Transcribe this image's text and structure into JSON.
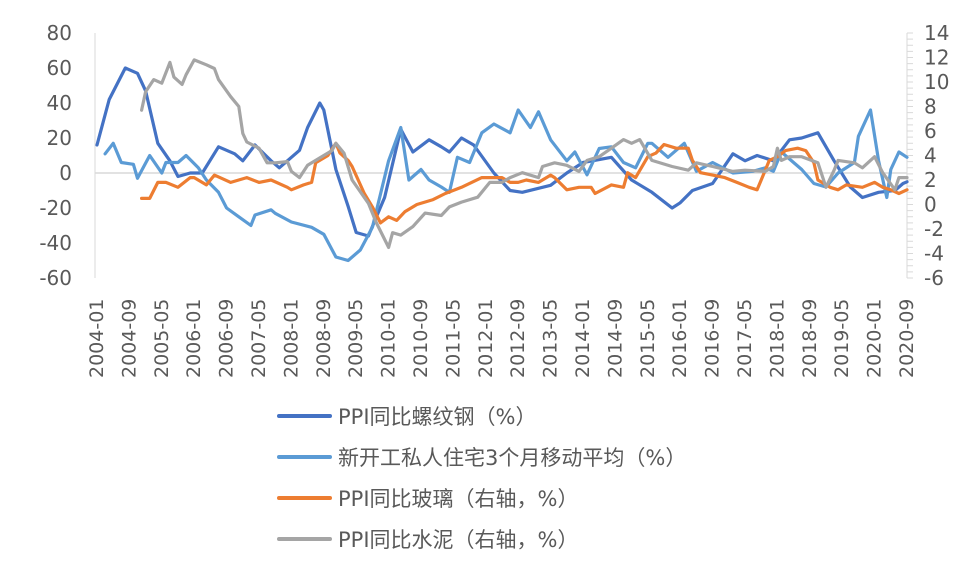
{
  "chart_data": {
    "type": "line",
    "title": "",
    "x_tick_labels": [
      "2004-01",
      "2004-09",
      "2005-05",
      "2006-01",
      "2006-09",
      "2007-05",
      "2008-01",
      "2008-09",
      "2009-05",
      "2010-01",
      "2010-09",
      "2011-05",
      "2012-01",
      "2012-09",
      "2013-05",
      "2014-01",
      "2014-09",
      "2015-05",
      "2016-01",
      "2016-09",
      "2017-05",
      "2018-01",
      "2018-09",
      "2019-05",
      "2020-01",
      "2020-09"
    ],
    "x_range": [
      "2004-01",
      "2020-09"
    ],
    "y_left": {
      "range": [
        -60,
        80
      ],
      "ticks": [
        "80",
        "60",
        "40",
        "20",
        "0",
        "-20",
        "-40",
        "-60"
      ]
    },
    "y_right": {
      "range": [
        -6,
        14
      ],
      "ticks": [
        "14",
        "12",
        "10",
        "8",
        "6",
        "4",
        "2",
        "0",
        "-2",
        "-4",
        "-6"
      ]
    },
    "legend_position": "bottom",
    "series": [
      {
        "name": "PPI同比螺纹钢（%）",
        "axis": "left",
        "color": "#4472C4",
        "points": [
          [
            "2004-01",
            16
          ],
          [
            "2004-04",
            42
          ],
          [
            "2004-08",
            60
          ],
          [
            "2004-11",
            57
          ],
          [
            "2005-01",
            47
          ],
          [
            "2005-04",
            17
          ],
          [
            "2005-07",
            7
          ],
          [
            "2005-09",
            -2
          ],
          [
            "2005-12",
            0
          ],
          [
            "2006-03",
            0
          ],
          [
            "2006-07",
            15
          ],
          [
            "2006-11",
            11
          ],
          [
            "2007-01",
            7
          ],
          [
            "2007-04",
            16
          ],
          [
            "2007-08",
            7
          ],
          [
            "2007-10",
            3
          ],
          [
            "2008-03",
            13
          ],
          [
            "2008-05",
            26
          ],
          [
            "2008-08",
            40
          ],
          [
            "2008-09",
            36
          ],
          [
            "2008-12",
            2
          ],
          [
            "2009-03",
            -19
          ],
          [
            "2009-05",
            -34
          ],
          [
            "2009-08",
            -36
          ],
          [
            "2009-12",
            -14
          ],
          [
            "2010-04",
            25
          ],
          [
            "2010-07",
            12
          ],
          [
            "2010-11",
            19
          ],
          [
            "2011-02",
            15
          ],
          [
            "2011-04",
            12
          ],
          [
            "2011-07",
            20
          ],
          [
            "2011-10",
            16
          ],
          [
            "2012-03",
            0
          ],
          [
            "2012-07",
            -10
          ],
          [
            "2012-10",
            -11
          ],
          [
            "2013-05",
            -7
          ],
          [
            "2013-09",
            0
          ],
          [
            "2014-01",
            6
          ],
          [
            "2014-08",
            9
          ],
          [
            "2015-01",
            -4
          ],
          [
            "2015-06",
            -11
          ],
          [
            "2015-11",
            -20
          ],
          [
            "2016-01",
            -17
          ],
          [
            "2016-04",
            -10
          ],
          [
            "2016-09",
            -6
          ],
          [
            "2017-02",
            11
          ],
          [
            "2017-05",
            7
          ],
          [
            "2017-08",
            10
          ],
          [
            "2017-12",
            7
          ],
          [
            "2018-04",
            19
          ],
          [
            "2018-07",
            20
          ],
          [
            "2018-11",
            23
          ],
          [
            "2019-03",
            7
          ],
          [
            "2019-07",
            -8
          ],
          [
            "2019-10",
            -14
          ],
          [
            "2020-02",
            -11
          ],
          [
            "2020-06",
            -10
          ],
          [
            "2020-08",
            -6
          ],
          [
            "2020-09",
            -5
          ]
        ]
      },
      {
        "name": "新开工私人住宅3个月移动平均（%）",
        "axis": "left",
        "color": "#5B9BD5",
        "points": [
          [
            "2004-03",
            11
          ],
          [
            "2004-05",
            17
          ],
          [
            "2004-07",
            6
          ],
          [
            "2004-10",
            5
          ],
          [
            "2004-11",
            -3
          ],
          [
            "2005-02",
            10
          ],
          [
            "2005-05",
            0
          ],
          [
            "2005-06",
            6
          ],
          [
            "2005-09",
            6
          ],
          [
            "2005-11",
            10
          ],
          [
            "2006-02",
            3
          ],
          [
            "2006-04",
            -4
          ],
          [
            "2006-07",
            -11
          ],
          [
            "2006-09",
            -20
          ],
          [
            "2006-12",
            -25
          ],
          [
            "2007-03",
            -30
          ],
          [
            "2007-04",
            -24
          ],
          [
            "2007-08",
            -21
          ],
          [
            "2007-09",
            -23
          ],
          [
            "2008-01",
            -28
          ],
          [
            "2008-06",
            -31
          ],
          [
            "2008-09",
            -35
          ],
          [
            "2008-12",
            -48
          ],
          [
            "2009-03",
            -50
          ],
          [
            "2009-06",
            -44
          ],
          [
            "2009-09",
            -31
          ],
          [
            "2010-01",
            7
          ],
          [
            "2010-04",
            26
          ],
          [
            "2010-06",
            -4
          ],
          [
            "2010-09",
            2
          ],
          [
            "2010-11",
            -4
          ],
          [
            "2011-02",
            -8
          ],
          [
            "2011-04",
            -11
          ],
          [
            "2011-06",
            9
          ],
          [
            "2011-09",
            6
          ],
          [
            "2011-12",
            23
          ],
          [
            "2012-03",
            28
          ],
          [
            "2012-07",
            23
          ],
          [
            "2012-09",
            36
          ],
          [
            "2012-12",
            26
          ],
          [
            "2013-02",
            35
          ],
          [
            "2013-05",
            19
          ],
          [
            "2013-09",
            7
          ],
          [
            "2013-11",
            12
          ],
          [
            "2014-02",
            -1
          ],
          [
            "2014-05",
            14
          ],
          [
            "2014-08",
            15
          ],
          [
            "2014-11",
            6
          ],
          [
            "2015-02",
            3
          ],
          [
            "2015-05",
            17
          ],
          [
            "2015-06",
            17
          ],
          [
            "2015-10",
            9
          ],
          [
            "2016-02",
            17
          ],
          [
            "2016-05",
            1
          ],
          [
            "2016-09",
            6
          ],
          [
            "2017-02",
            0
          ],
          [
            "2017-07",
            1
          ],
          [
            "2017-10",
            3
          ],
          [
            "2017-12",
            1
          ],
          [
            "2018-02",
            12
          ],
          [
            "2018-07",
            2
          ],
          [
            "2018-10",
            -6
          ],
          [
            "2019-01",
            -8
          ],
          [
            "2019-04",
            0
          ],
          [
            "2019-08",
            6
          ],
          [
            "2019-09",
            21
          ],
          [
            "2019-12",
            36
          ],
          [
            "2020-02",
            7
          ],
          [
            "2020-04",
            -14
          ],
          [
            "2020-05",
            2
          ],
          [
            "2020-07",
            12
          ],
          [
            "2020-09",
            9
          ]
        ]
      },
      {
        "name": "PPI同比玻璃（右轴，%）",
        "axis": "right",
        "color": "#ED7D31",
        "points": [
          [
            "2004-12",
            0.5
          ],
          [
            "2005-02",
            0.5
          ],
          [
            "2005-04",
            1.8
          ],
          [
            "2005-06",
            1.8
          ],
          [
            "2005-09",
            1.4
          ],
          [
            "2005-12",
            2.2
          ],
          [
            "2006-01",
            2.2
          ],
          [
            "2006-04",
            1.6
          ],
          [
            "2006-06",
            2.4
          ],
          [
            "2006-10",
            1.8
          ],
          [
            "2007-02",
            2.2
          ],
          [
            "2007-05",
            1.8
          ],
          [
            "2007-08",
            2.0
          ],
          [
            "2007-12",
            1.4
          ],
          [
            "2008-01",
            1.2
          ],
          [
            "2008-04",
            1.6
          ],
          [
            "2008-06",
            1.8
          ],
          [
            "2008-07",
            3.4
          ],
          [
            "2008-10",
            4.0
          ],
          [
            "2008-12",
            5.0
          ],
          [
            "2009-01",
            4.2
          ],
          [
            "2009-03",
            3.6
          ],
          [
            "2009-04",
            3.1
          ],
          [
            "2009-07",
            0.9
          ],
          [
            "2009-09",
            -0.2
          ],
          [
            "2009-11",
            -1.5
          ],
          [
            "2010-01",
            -1.0
          ],
          [
            "2010-03",
            -1.3
          ],
          [
            "2010-05",
            -0.6
          ],
          [
            "2010-08",
            0
          ],
          [
            "2010-12",
            0.4
          ],
          [
            "2011-03",
            0.9
          ],
          [
            "2011-07",
            1.4
          ],
          [
            "2011-12",
            2.2
          ],
          [
            "2012-05",
            2.2
          ],
          [
            "2012-07",
            1.8
          ],
          [
            "2012-09",
            1.8
          ],
          [
            "2012-11",
            2.0
          ],
          [
            "2013-02",
            1.8
          ],
          [
            "2013-05",
            2.4
          ],
          [
            "2013-06",
            2.2
          ],
          [
            "2013-09",
            1.2
          ],
          [
            "2013-12",
            1.4
          ],
          [
            "2014-03",
            1.4
          ],
          [
            "2014-04",
            0.9
          ],
          [
            "2014-08",
            1.6
          ],
          [
            "2014-11",
            1.4
          ],
          [
            "2014-12",
            2.6
          ],
          [
            "2015-02",
            2.2
          ],
          [
            "2015-05",
            3.9
          ],
          [
            "2015-07",
            4.2
          ],
          [
            "2015-09",
            4.9
          ],
          [
            "2015-12",
            4.6
          ],
          [
            "2016-03",
            4.6
          ],
          [
            "2016-04",
            3.6
          ],
          [
            "2016-06",
            2.6
          ],
          [
            "2016-09",
            2.4
          ],
          [
            "2016-12",
            2.2
          ],
          [
            "2017-03",
            1.8
          ],
          [
            "2017-06",
            1.4
          ],
          [
            "2017-08",
            1.2
          ],
          [
            "2017-09",
            2.0
          ],
          [
            "2017-11",
            3.6
          ],
          [
            "2018-01",
            3.9
          ],
          [
            "2018-03",
            4.4
          ],
          [
            "2018-06",
            4.6
          ],
          [
            "2018-08",
            4.4
          ],
          [
            "2018-10",
            3.4
          ],
          [
            "2018-11",
            2.0
          ],
          [
            "2019-02",
            1.4
          ],
          [
            "2019-04",
            1.2
          ],
          [
            "2019-06",
            1.6
          ],
          [
            "2019-10",
            1.4
          ],
          [
            "2020-01",
            1.8
          ],
          [
            "2020-03",
            1.4
          ],
          [
            "2020-05",
            1.2
          ],
          [
            "2020-07",
            0.9
          ],
          [
            "2020-09",
            1.2
          ]
        ]
      },
      {
        "name": "PPI同比水泥（右轴，%）",
        "axis": "right",
        "color": "#A5A5A5",
        "points": [
          [
            "2004-12",
            7.7
          ],
          [
            "2005-01",
            9.2
          ],
          [
            "2005-03",
            10.2
          ],
          [
            "2005-05",
            9.9
          ],
          [
            "2005-07",
            11.6
          ],
          [
            "2005-08",
            10.4
          ],
          [
            "2005-10",
            9.8
          ],
          [
            "2005-11",
            10.6
          ],
          [
            "2006-01",
            11.8
          ],
          [
            "2006-04",
            11.4
          ],
          [
            "2006-06",
            11.1
          ],
          [
            "2006-07",
            10.2
          ],
          [
            "2006-10",
            8.8
          ],
          [
            "2006-12",
            8.0
          ],
          [
            "2007-01",
            5.8
          ],
          [
            "2007-02",
            5.1
          ],
          [
            "2007-05",
            4.6
          ],
          [
            "2007-07",
            3.4
          ],
          [
            "2007-09",
            3.4
          ],
          [
            "2007-12",
            3.5
          ],
          [
            "2008-01",
            2.7
          ],
          [
            "2008-03",
            2.2
          ],
          [
            "2008-05",
            3.2
          ],
          [
            "2008-08",
            3.8
          ],
          [
            "2008-11",
            4.4
          ],
          [
            "2008-12",
            5.0
          ],
          [
            "2009-02",
            4.2
          ],
          [
            "2009-04",
            2.0
          ],
          [
            "2009-08",
            0.1
          ],
          [
            "2009-10",
            -1.5
          ],
          [
            "2010-01",
            -3.5
          ],
          [
            "2010-02",
            -2.3
          ],
          [
            "2010-04",
            -2.5
          ],
          [
            "2010-07",
            -1.8
          ],
          [
            "2010-10",
            -0.7
          ],
          [
            "2011-02",
            -0.9
          ],
          [
            "2011-04",
            -0.2
          ],
          [
            "2011-07",
            0.2
          ],
          [
            "2011-11",
            0.6
          ],
          [
            "2012-02",
            1.8
          ],
          [
            "2012-05",
            1.8
          ],
          [
            "2012-07",
            2.2
          ],
          [
            "2012-10",
            2.6
          ],
          [
            "2013-02",
            2.2
          ],
          [
            "2013-03",
            3.1
          ],
          [
            "2013-06",
            3.4
          ],
          [
            "2013-09",
            3.2
          ],
          [
            "2013-12",
            2.7
          ],
          [
            "2014-02",
            3.6
          ],
          [
            "2014-05",
            3.9
          ],
          [
            "2014-08",
            4.6
          ],
          [
            "2014-11",
            5.3
          ],
          [
            "2015-01",
            5.0
          ],
          [
            "2015-03",
            5.3
          ],
          [
            "2015-06",
            3.6
          ],
          [
            "2015-11",
            3.1
          ],
          [
            "2016-03",
            2.8
          ],
          [
            "2016-05",
            3.4
          ],
          [
            "2016-09",
            3.1
          ],
          [
            "2017-02",
            2.7
          ],
          [
            "2017-05",
            2.8
          ],
          [
            "2017-10",
            2.7
          ],
          [
            "2017-12",
            3.1
          ],
          [
            "2018-01",
            4.6
          ],
          [
            "2018-02",
            3.6
          ],
          [
            "2018-04",
            3.9
          ],
          [
            "2018-07",
            3.9
          ],
          [
            "2018-11",
            3.4
          ],
          [
            "2019-01",
            1.4
          ],
          [
            "2019-03",
            2.8
          ],
          [
            "2019-04",
            3.6
          ],
          [
            "2019-08",
            3.4
          ],
          [
            "2019-10",
            3.0
          ],
          [
            "2020-01",
            3.9
          ],
          [
            "2020-03",
            2.6
          ],
          [
            "2020-06",
            1.2
          ],
          [
            "2020-07",
            2.2
          ],
          [
            "2020-09",
            2.2
          ]
        ]
      }
    ]
  }
}
